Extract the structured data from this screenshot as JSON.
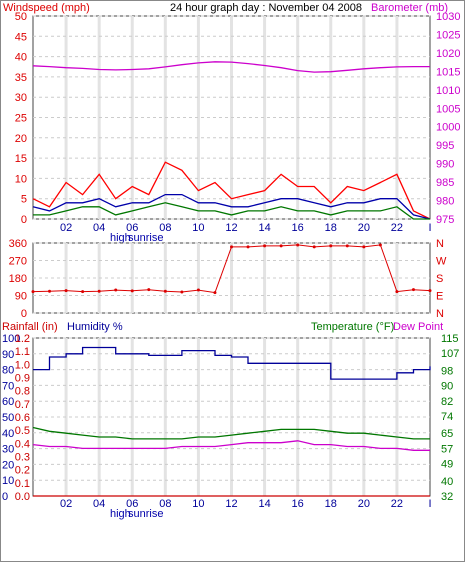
{
  "colors": {
    "wind": "#dd0000",
    "gust": "#ff0000",
    "wind_avg": "#0000aa",
    "wind_low": "#007700",
    "barometer": "#cc00cc",
    "humidity": "#000099",
    "rain": "#cc0000",
    "temperature": "#007700",
    "dewpoint": "#cc00cc",
    "grid": "#cccccc",
    "band": "#e3e3e3"
  },
  "header": {
    "left_label": "Windspeed (mph)",
    "title": "24 hour graph day : November 04 2008",
    "right_label": "Barometer (mb)"
  },
  "xaxis": {
    "ticks": [
      "02",
      "04",
      "06",
      "08",
      "10",
      "12",
      "14",
      "16",
      "18",
      "20",
      "22",
      "I"
    ],
    "marker_high": "high",
    "marker_sunrise": "sunrise"
  },
  "dir_panel": {
    "right_labels": [
      "N",
      "W",
      "S",
      "E",
      "N"
    ]
  },
  "bottom_panel": {
    "rain_label": "Rainfall (in)",
    "humidity_label": "Humidity %",
    "temp_label": "Temperature (°F)",
    "dew_label": "Dew Point"
  },
  "chart_data": [
    {
      "type": "line",
      "panel": "wind and barometer",
      "x_hours": [
        0,
        1,
        2,
        3,
        4,
        5,
        6,
        7,
        8,
        9,
        10,
        11,
        12,
        13,
        14,
        15,
        16,
        17,
        18,
        19,
        20,
        21,
        22,
        23,
        24
      ],
      "left_axis": {
        "label": "Windspeed (mph)",
        "ylim": [
          0,
          50
        ],
        "ticks": [
          0,
          5,
          10,
          15,
          20,
          25,
          30,
          35,
          40,
          45,
          50
        ]
      },
      "right_axis": {
        "label": "Barometer (mb)",
        "ylim": [
          975,
          1030
        ],
        "ticks": [
          975,
          980,
          985,
          990,
          995,
          1000,
          1005,
          1010,
          1015,
          1020,
          1025,
          1030
        ]
      },
      "series": [
        {
          "axis": "right",
          "values": [
            1016.5,
            1016.3,
            1016,
            1015.8,
            1015.5,
            1015.4,
            1015.5,
            1015.7,
            1016.2,
            1016.8,
            1017.3,
            1017.6,
            1017.5,
            1017.1,
            1016.6,
            1016,
            1015.2,
            1014.8,
            1014.9,
            1015.3,
            1015.7,
            1016,
            1016.2,
            1016.3,
            1016.3
          ]
        },
        {
          "axis": "left",
          "values": [
            5,
            3,
            9,
            6,
            11,
            5,
            8,
            6,
            14,
            12,
            7,
            9,
            5,
            6,
            7,
            11,
            8,
            8,
            4,
            8,
            7,
            9,
            11,
            2,
            0
          ]
        },
        {
          "axis": "left",
          "values": [
            3,
            2,
            4,
            4,
            5,
            3,
            4,
            4,
            6,
            6,
            4,
            4,
            3,
            3,
            4,
            5,
            5,
            4,
            3,
            4,
            4,
            5,
            5,
            1,
            0
          ]
        },
        {
          "axis": "left",
          "values": [
            1,
            1,
            2,
            3,
            3,
            1,
            2,
            3,
            4,
            3,
            2,
            2,
            1,
            2,
            2,
            3,
            2,
            2,
            1,
            2,
            2,
            2,
            3,
            0,
            0
          ]
        }
      ]
    },
    {
      "type": "scatter",
      "panel": "wind direction",
      "y_ticks": [
        0,
        90,
        180,
        270,
        360
      ],
      "ylim": [
        0,
        360
      ],
      "x_hours": [
        0,
        1,
        2,
        3,
        4,
        5,
        6,
        7,
        8,
        9,
        10,
        11,
        12,
        13,
        14,
        15,
        16,
        17,
        18,
        19,
        20,
        21,
        22,
        23,
        24
      ],
      "values": [
        110,
        112,
        115,
        110,
        112,
        118,
        114,
        120,
        112,
        108,
        118,
        105,
        340,
        340,
        345,
        345,
        350,
        340,
        345,
        345,
        340,
        350,
        110,
        120,
        115
      ]
    },
    {
      "type": "line",
      "panel": "rain humidity temperature",
      "x_hours": [
        0,
        1,
        2,
        3,
        4,
        5,
        6,
        7,
        8,
        9,
        10,
        11,
        12,
        13,
        14,
        15,
        16,
        17,
        18,
        19,
        20,
        21,
        22,
        23,
        24
      ],
      "left_axis": {
        "label": "Humidity %",
        "ylim": [
          0,
          100
        ],
        "ticks": [
          0,
          10,
          20,
          30,
          40,
          50,
          60,
          70,
          80,
          90,
          100
        ]
      },
      "rain_axis": {
        "label": "Rainfall (in)",
        "ylim": [
          0,
          1.2
        ],
        "ticks": [
          0,
          0.1,
          0.2,
          0.3,
          0.4,
          0.5,
          0.6,
          0.7,
          0.8,
          0.9,
          1.0,
          1.1,
          1.2
        ]
      },
      "right_axis": {
        "label": "Temperature (°F)",
        "ylim": [
          32,
          115
        ],
        "ticks": [
          32,
          40,
          49,
          57,
          65,
          74,
          82,
          90,
          98,
          107,
          115
        ]
      },
      "series": [
        {
          "axis": "left",
          "values": [
            80,
            88,
            90,
            94,
            94,
            90,
            90,
            89,
            89,
            92,
            92,
            89,
            88,
            84,
            84,
            84,
            84,
            84,
            74,
            74,
            74,
            74,
            78,
            80,
            82
          ]
        },
        {
          "axis": "rain",
          "values": [
            0,
            0,
            0,
            0,
            0,
            0,
            0,
            0,
            0,
            0,
            0,
            0,
            0,
            0,
            0,
            0,
            0,
            0,
            0,
            0,
            0,
            0,
            0,
            0,
            0
          ]
        },
        {
          "axis": "right",
          "values": [
            68,
            66,
            65,
            64,
            63,
            63,
            62,
            62,
            62,
            62,
            63,
            63,
            64,
            65,
            66,
            67,
            67,
            67,
            66,
            65,
            65,
            64,
            63,
            62,
            62
          ]
        },
        {
          "axis": "right",
          "values": [
            59,
            58,
            58,
            57,
            57,
            57,
            57,
            57,
            57,
            58,
            58,
            58,
            59,
            60,
            60,
            60,
            61,
            59,
            59,
            58,
            58,
            57,
            57,
            56,
            56
          ]
        }
      ]
    }
  ]
}
